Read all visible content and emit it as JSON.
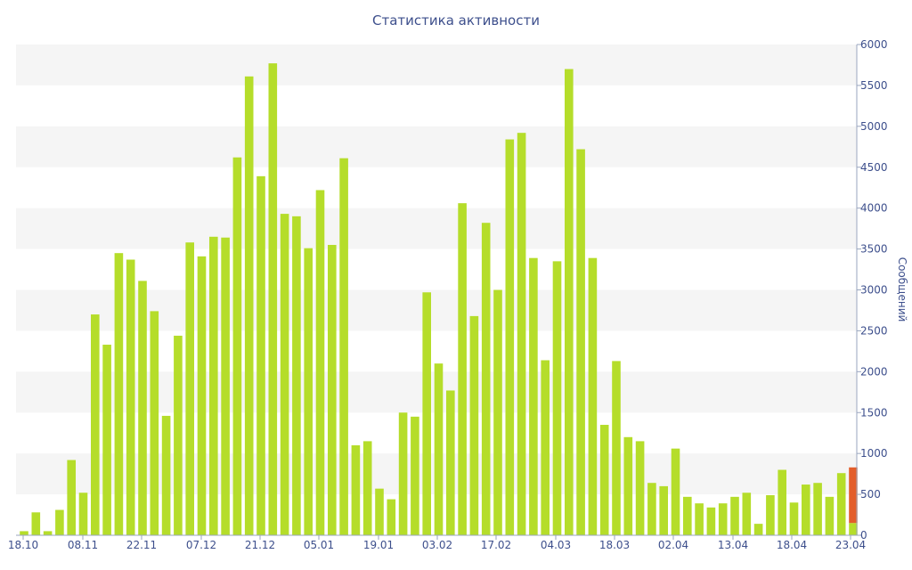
{
  "chart_data": {
    "type": "bar",
    "title": "Статистика активности",
    "ylabel": "Сообщений",
    "ylim": [
      0,
      6000
    ],
    "y_ticks": [
      0,
      500,
      1000,
      1500,
      2000,
      2500,
      3000,
      3500,
      4000,
      4500,
      5000,
      5500,
      6000
    ],
    "x_tick_labels": [
      "18.10",
      "08.11",
      "22.11",
      "07.12",
      "21.12",
      "05.01",
      "19.01",
      "03.02",
      "17.02",
      "04.03",
      "18.03",
      "02.04",
      "13.04",
      "18.04",
      "23.04"
    ],
    "series": [
      {
        "color": "#b5dd2a",
        "values": [
          50,
          280,
          50,
          310,
          920,
          520,
          2700,
          2330,
          3450,
          3370,
          3110,
          2740,
          1460,
          2440,
          3580,
          3410,
          3650,
          3640,
          4620,
          5610,
          4390,
          5770,
          3930,
          3900,
          3510,
          4220,
          3550,
          4610,
          1100,
          1150,
          570,
          440,
          1500,
          1450,
          2970,
          2100,
          1770,
          4060,
          2680,
          3820,
          3000,
          4840,
          4920,
          3390,
          2140,
          3350,
          5700,
          4720,
          3390,
          1350,
          2130,
          1200,
          1150,
          640,
          600,
          1060,
          470,
          390,
          340,
          390,
          470,
          520,
          140,
          490,
          800,
          400,
          620,
          640,
          470,
          760,
          150
        ]
      },
      {
        "color": "#e35d2a",
        "values": [
          0,
          0,
          0,
          0,
          0,
          0,
          0,
          0,
          0,
          0,
          0,
          0,
          0,
          0,
          0,
          0,
          0,
          0,
          0,
          0,
          0,
          0,
          0,
          0,
          0,
          0,
          0,
          0,
          0,
          0,
          0,
          0,
          0,
          0,
          0,
          0,
          0,
          0,
          0,
          0,
          0,
          0,
          0,
          0,
          0,
          0,
          0,
          0,
          0,
          0,
          0,
          0,
          0,
          0,
          0,
          0,
          0,
          0,
          0,
          0,
          0,
          0,
          0,
          0,
          0,
          0,
          0,
          0,
          0,
          0,
          680
        ]
      }
    ]
  }
}
